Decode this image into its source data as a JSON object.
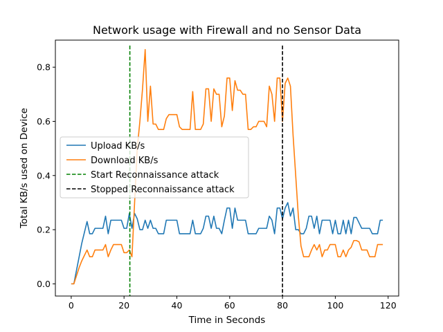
{
  "chart_data": {
    "type": "line",
    "title": "Network usage with Firewall and no Sensor Data",
    "xlabel": "Time in Seconds",
    "ylabel": "Total KB/s used on Device",
    "xlim": [
      -6,
      124
    ],
    "ylim": [
      -0.045,
      0.9
    ],
    "xticks": [
      0,
      20,
      40,
      60,
      80,
      100,
      120
    ],
    "yticks": [
      0.0,
      0.2,
      0.4,
      0.6,
      0.8
    ],
    "legend_position": "center-left",
    "series": [
      {
        "name": "Upload KB/s",
        "color": "#1f77b4",
        "x": [
          0,
          1,
          2,
          3,
          4,
          5,
          6,
          7,
          8,
          9,
          10,
          11,
          12,
          13,
          14,
          15,
          16,
          17,
          18,
          19,
          20,
          21,
          22,
          23,
          24,
          25,
          26,
          27,
          28,
          29,
          30,
          31,
          32,
          33,
          34,
          35,
          36,
          37,
          38,
          39,
          40,
          41,
          42,
          43,
          44,
          45,
          46,
          47,
          48,
          49,
          50,
          51,
          52,
          53,
          54,
          55,
          56,
          57,
          58,
          59,
          60,
          61,
          62,
          63,
          64,
          65,
          66,
          67,
          68,
          69,
          70,
          71,
          72,
          73,
          74,
          75,
          76,
          77,
          78,
          79,
          80,
          81,
          82,
          83,
          84,
          85,
          86,
          87,
          88,
          89,
          90,
          91,
          92,
          93,
          94,
          95,
          96,
          97,
          98,
          99,
          100,
          101,
          102,
          103,
          104,
          105,
          106,
          107,
          108,
          109,
          110,
          111,
          112,
          113,
          114,
          115,
          116,
          117,
          118
        ],
        "y": [
          0,
          0,
          0.05,
          0.1,
          0.15,
          0.19,
          0.23,
          0.185,
          0.185,
          0.205,
          0.205,
          0.205,
          0.205,
          0.25,
          0.185,
          0.235,
          0.235,
          0.235,
          0.235,
          0.235,
          0.205,
          0.205,
          0.26,
          0.205,
          0.26,
          0.24,
          0.2,
          0.2,
          0.235,
          0.205,
          0.235,
          0.205,
          0.205,
          0.185,
          0.185,
          0.185,
          0.235,
          0.235,
          0.235,
          0.235,
          0.235,
          0.185,
          0.185,
          0.185,
          0.185,
          0.185,
          0.235,
          0.185,
          0.185,
          0.185,
          0.205,
          0.25,
          0.25,
          0.205,
          0.25,
          0.205,
          0.205,
          0.185,
          0.235,
          0.28,
          0.28,
          0.205,
          0.28,
          0.235,
          0.235,
          0.235,
          0.235,
          0.185,
          0.185,
          0.185,
          0.185,
          0.205,
          0.205,
          0.205,
          0.205,
          0.25,
          0.235,
          0.185,
          0.28,
          0.28,
          0.24,
          0.28,
          0.3,
          0.25,
          0.28,
          0.2,
          0.2,
          0.185,
          0.185,
          0.205,
          0.25,
          0.25,
          0.205,
          0.25,
          0.185,
          0.235,
          0.235,
          0.235,
          0.235,
          0.185,
          0.235,
          0.185,
          0.185,
          0.235,
          0.185,
          0.235,
          0.185,
          0.245,
          0.245,
          0.225,
          0.205,
          0.205,
          0.205,
          0.205,
          0.185,
          0.185,
          0.185,
          0.235,
          0.235
        ]
      },
      {
        "name": "Download KB/s",
        "color": "#ff7f0e",
        "x": [
          0,
          1,
          2,
          3,
          4,
          5,
          6,
          7,
          8,
          9,
          10,
          11,
          12,
          13,
          14,
          15,
          16,
          17,
          18,
          19,
          20,
          21,
          22,
          23,
          24,
          25,
          26,
          27,
          28,
          29,
          30,
          31,
          32,
          33,
          34,
          35,
          36,
          37,
          38,
          39,
          40,
          41,
          42,
          43,
          44,
          45,
          46,
          47,
          48,
          49,
          50,
          51,
          52,
          53,
          54,
          55,
          56,
          57,
          58,
          59,
          60,
          61,
          62,
          63,
          64,
          65,
          66,
          67,
          68,
          69,
          70,
          71,
          72,
          73,
          74,
          75,
          76,
          77,
          78,
          79,
          80,
          81,
          82,
          83,
          84,
          85,
          86,
          87,
          88,
          89,
          90,
          91,
          92,
          93,
          94,
          95,
          96,
          97,
          98,
          99,
          100,
          101,
          102,
          103,
          104,
          105,
          106,
          107,
          108,
          109,
          110,
          111,
          112,
          113,
          114,
          115,
          116,
          117,
          118
        ],
        "y": [
          0,
          0,
          0.03,
          0.06,
          0.085,
          0.105,
          0.125,
          0.1,
          0.1,
          0.125,
          0.125,
          0.125,
          0.125,
          0.145,
          0.1,
          0.125,
          0.145,
          0.145,
          0.145,
          0.145,
          0.115,
          0.115,
          0.125,
          0.1,
          0.3,
          0.5,
          0.6,
          0.72,
          0.865,
          0.6,
          0.73,
          0.59,
          0.59,
          0.57,
          0.57,
          0.57,
          0.61,
          0.625,
          0.625,
          0.625,
          0.625,
          0.58,
          0.57,
          0.57,
          0.57,
          0.57,
          0.71,
          0.57,
          0.57,
          0.57,
          0.59,
          0.72,
          0.72,
          0.6,
          0.72,
          0.7,
          0.7,
          0.58,
          0.62,
          0.76,
          0.76,
          0.64,
          0.75,
          0.715,
          0.715,
          0.7,
          0.7,
          0.57,
          0.57,
          0.58,
          0.58,
          0.6,
          0.6,
          0.6,
          0.58,
          0.73,
          0.7,
          0.6,
          0.76,
          0.76,
          0.6,
          0.74,
          0.76,
          0.73,
          0.55,
          0.4,
          0.25,
          0.14,
          0.1,
          0.1,
          0.1,
          0.125,
          0.145,
          0.125,
          0.145,
          0.1,
          0.125,
          0.125,
          0.145,
          0.145,
          0.145,
          0.1,
          0.1,
          0.125,
          0.1,
          0.125,
          0.135,
          0.16,
          0.16,
          0.155,
          0.125,
          0.125,
          0.125,
          0.1,
          0.1,
          0.1,
          0.145,
          0.145,
          0.145
        ]
      }
    ],
    "vlines": [
      {
        "name": "Start Reconnaissance attack",
        "x": 22.2,
        "color": "#008000",
        "y_range": [
          -0.045,
          0.88
        ]
      },
      {
        "name": "Stopped Reconnaissance attack",
        "x": 80,
        "color": "#000000",
        "y_range": [
          -0.045,
          0.88
        ]
      }
    ]
  }
}
